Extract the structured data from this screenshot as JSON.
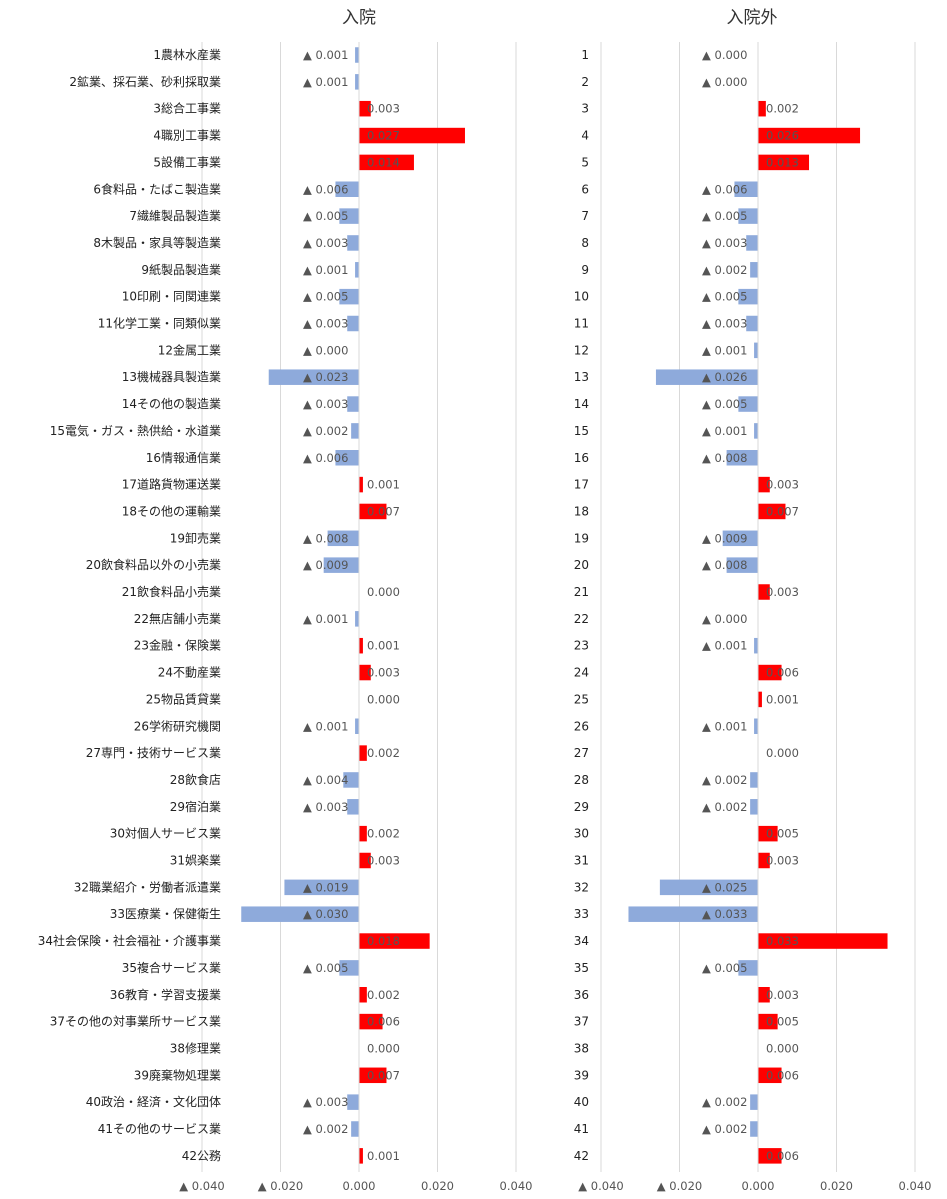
{
  "chart_data": [
    {
      "type": "bar",
      "orientation": "horizontal",
      "title": "入院",
      "categories": [
        "1農林水産業",
        "2鉱業、採石業、砂利採取業",
        "3総合工事業",
        "4職別工事業",
        "5設備工事業",
        "6食料品・たばこ製造業",
        "7繊維製品製造業",
        "8木製品・家具等製造業",
        "9紙製品製造業",
        "10印刷・同関連業",
        "11化学工業・同類似業",
        "12金属工業",
        "13機械器具製造業",
        "14その他の製造業",
        "15電気・ガス・熱供給・水道業",
        "16情報通信業",
        "17道路貨物運送業",
        "18その他の運輸業",
        "19卸売業",
        "20飲食料品以外の小売業",
        "21飲食料品小売業",
        "22無店舗小売業",
        "23金融・保険業",
        "24不動産業",
        "25物品賃貸業",
        "26学術研究機関",
        "27専門・技術サービス業",
        "28飲食店",
        "29宿泊業",
        "30対個人サービス業",
        "31娯楽業",
        "32職業紹介・労働者派遣業",
        "33医療業・保健衛生",
        "34社会保険・社会福祉・介護事業",
        "35複合サービス業",
        "36教育・学習支援業",
        "37その他の対事業所サービス業",
        "38修理業",
        "39廃棄物処理業",
        "40政治・経済・文化団体",
        "41その他のサービス業",
        "42公務"
      ],
      "values": [
        -0.001,
        -0.001,
        0.003,
        0.027,
        0.014,
        -0.006,
        -0.005,
        -0.003,
        -0.001,
        -0.005,
        -0.003,
        0.0,
        -0.023,
        -0.003,
        -0.002,
        -0.006,
        0.001,
        0.007,
        -0.008,
        -0.009,
        0.0,
        -0.001,
        0.001,
        0.003,
        0.0,
        -0.001,
        0.002,
        -0.004,
        -0.003,
        0.002,
        0.003,
        -0.019,
        -0.03,
        0.018,
        -0.005,
        0.002,
        0.006,
        0.0,
        0.007,
        -0.003,
        -0.002,
        0.001
      ],
      "data_labels": [
        "▲ 0.001",
        "▲ 0.001",
        "0.003",
        "0.027",
        "0.014",
        "▲ 0.006",
        "▲ 0.005",
        "▲ 0.003",
        "▲ 0.001",
        "▲ 0.005",
        "▲ 0.003",
        "▲ 0.000",
        "▲ 0.023",
        "▲ 0.003",
        "▲ 0.002",
        "▲ 0.006",
        "0.001",
        "0.007",
        "▲ 0.008",
        "▲ 0.009",
        "0.000",
        "▲ 0.001",
        "0.001",
        "0.003",
        "0.000",
        "▲ 0.001",
        "0.002",
        "▲ 0.004",
        "▲ 0.003",
        "0.002",
        "0.003",
        "▲ 0.019",
        "▲ 0.030",
        "0.018",
        "▲ 0.005",
        "0.002",
        "0.006",
        "0.000",
        "0.007",
        "▲ 0.003",
        "▲ 0.002",
        "0.001"
      ],
      "xlim": [
        -0.04,
        0.04
      ],
      "xticks": [
        -0.04,
        -0.02,
        0.0,
        0.02,
        0.04
      ],
      "xtick_labels": [
        "▲ 0.040",
        "▲ 0.020",
        "0.000",
        "0.020",
        "0.040"
      ],
      "grid": true,
      "colors": {
        "positive": "#ff0000",
        "negative": "#8eaadb"
      }
    },
    {
      "type": "bar",
      "orientation": "horizontal",
      "title": "入院外",
      "categories": [
        "1",
        "2",
        "3",
        "4",
        "5",
        "6",
        "7",
        "8",
        "9",
        "10",
        "11",
        "12",
        "13",
        "14",
        "15",
        "16",
        "17",
        "18",
        "19",
        "20",
        "21",
        "22",
        "23",
        "24",
        "25",
        "26",
        "27",
        "28",
        "29",
        "30",
        "31",
        "32",
        "33",
        "34",
        "35",
        "36",
        "37",
        "38",
        "39",
        "40",
        "41",
        "42"
      ],
      "values": [
        -0.0,
        -0.0,
        0.002,
        0.026,
        0.013,
        -0.006,
        -0.005,
        -0.003,
        -0.002,
        -0.005,
        -0.003,
        -0.001,
        -0.026,
        -0.005,
        -0.001,
        -0.008,
        0.003,
        0.007,
        -0.009,
        -0.008,
        0.003,
        -0.0,
        -0.001,
        0.006,
        0.001,
        -0.001,
        0.0,
        -0.002,
        -0.002,
        0.005,
        0.003,
        -0.025,
        -0.033,
        0.033,
        -0.005,
        0.003,
        0.005,
        0.0,
        0.006,
        -0.002,
        -0.002,
        0.006
      ],
      "data_labels": [
        "▲ 0.000",
        "▲ 0.000",
        "0.002",
        "0.026",
        "0.013",
        "▲ 0.006",
        "▲ 0.005",
        "▲ 0.003",
        "▲ 0.002",
        "▲ 0.005",
        "▲ 0.003",
        "▲ 0.001",
        "▲ 0.026",
        "▲ 0.005",
        "▲ 0.001",
        "▲ 0.008",
        "0.003",
        "0.007",
        "▲ 0.009",
        "▲ 0.008",
        "0.003",
        "▲ 0.000",
        "▲ 0.001",
        "0.006",
        "0.001",
        "▲ 0.001",
        "0.000",
        "▲ 0.002",
        "▲ 0.002",
        "0.005",
        "0.003",
        "▲ 0.025",
        "▲ 0.033",
        "0.033",
        "▲ 0.005",
        "0.003",
        "0.005",
        "0.000",
        "0.006",
        "▲ 0.002",
        "▲ 0.002",
        "0.006"
      ],
      "xlim": [
        -0.04,
        0.04
      ],
      "xticks": [
        -0.04,
        -0.02,
        0.0,
        0.02,
        0.04
      ],
      "xtick_labels": [
        "▲ 0.040",
        "▲ 0.020",
        "0.000",
        "0.020",
        "0.040"
      ],
      "grid": true,
      "colors": {
        "positive": "#ff0000",
        "negative": "#8eaadb"
      }
    }
  ]
}
